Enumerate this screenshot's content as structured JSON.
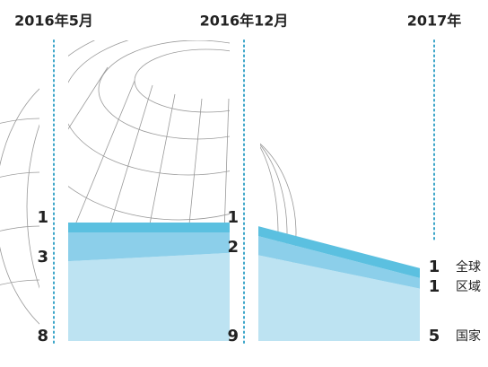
{
  "chart_data": {
    "type": "area",
    "categories": [
      "2016年5月",
      "2016年12月",
      "2017年"
    ],
    "series": [
      {
        "name": "全球",
        "color": "#5bc0e0",
        "values": [
          1,
          1,
          1
        ]
      },
      {
        "name": "区域",
        "color": "#8ccfea",
        "values": [
          3,
          2,
          1
        ]
      },
      {
        "name": "国家",
        "color": "#bde3f2",
        "values": [
          8,
          9,
          5
        ]
      }
    ]
  }
}
